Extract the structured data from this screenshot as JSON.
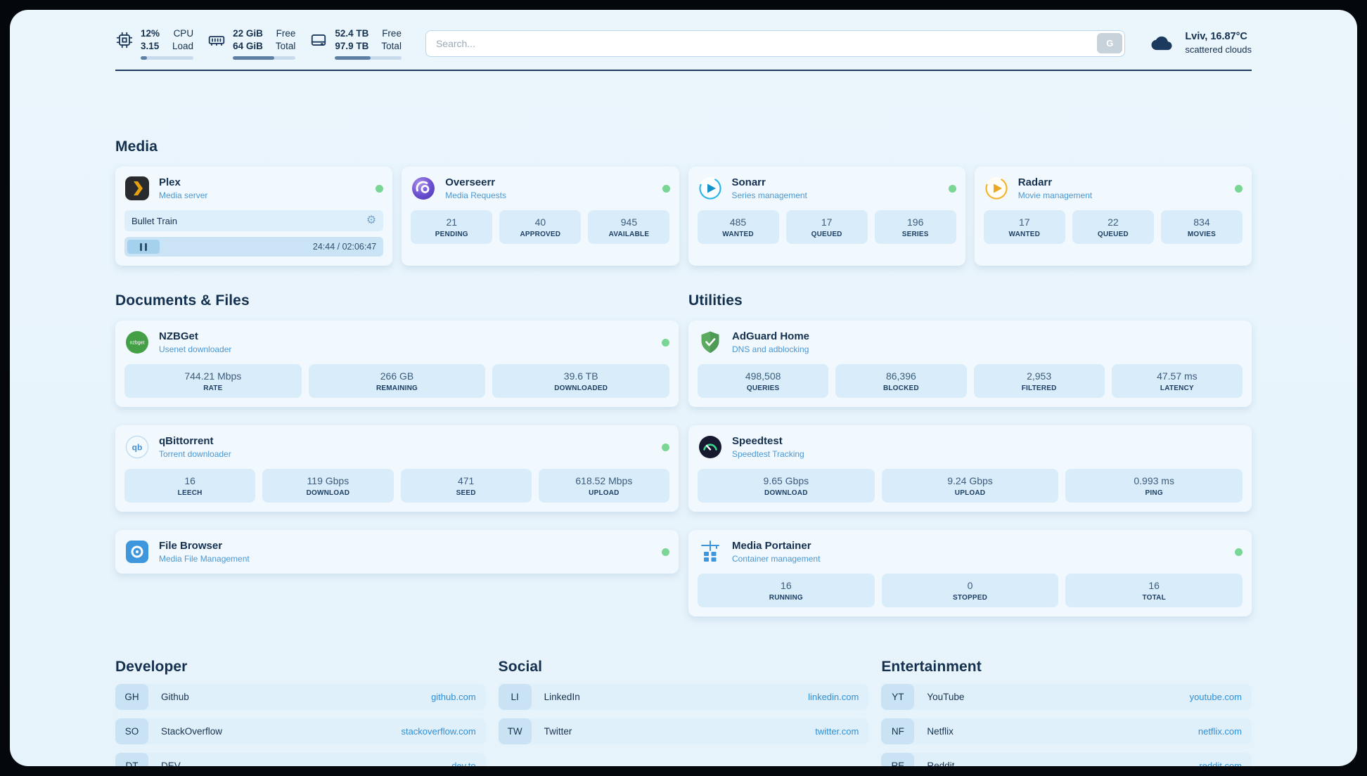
{
  "topbar": {
    "cpu": {
      "v1": "12%",
      "v2": "3.15",
      "l1": "CPU",
      "l2": "Load",
      "progress": 12
    },
    "ram": {
      "v1": "22 GiB",
      "v2": "64 GiB",
      "l1": "Free",
      "l2": "Total",
      "progress": 66
    },
    "disk": {
      "v1": "52.4 TB",
      "v2": "97.9 TB",
      "l1": "Free",
      "l2": "Total",
      "progress": 54
    },
    "search": {
      "placeholder": "Search...",
      "button_label": "G"
    },
    "weather": {
      "location": "Lviv, 16.87°C",
      "condition": "scattered clouds"
    }
  },
  "icons": {
    "gear_glyph": "⚙"
  },
  "colors": {
    "status_online": "#79d694",
    "link_blue": "#2f8fd6",
    "plex_amber": "#e5a00d",
    "panel_bg": "#e9f4fc"
  },
  "sections": {
    "media": {
      "heading": "Media"
    },
    "documents": {
      "heading": "Documents & Files"
    },
    "utilities": {
      "heading": "Utilities"
    }
  },
  "media_cards": [
    {
      "title": "Plex",
      "subtitle": "Media server",
      "now_playing": {
        "title": "Bullet Train",
        "time": "24:44 / 02:06:47"
      }
    },
    {
      "title": "Overseerr",
      "subtitle": "Media Requests",
      "stats": [
        {
          "value": "21",
          "label": "PENDING"
        },
        {
          "value": "40",
          "label": "APPROVED"
        },
        {
          "value": "945",
          "label": "AVAILABLE"
        }
      ]
    },
    {
      "title": "Sonarr",
      "subtitle": "Series management",
      "stats": [
        {
          "value": "485",
          "label": "WANTED"
        },
        {
          "value": "17",
          "label": "QUEUED"
        },
        {
          "value": "196",
          "label": "SERIES"
        }
      ]
    },
    {
      "title": "Radarr",
      "subtitle": "Movie management",
      "stats": [
        {
          "value": "17",
          "label": "WANTED"
        },
        {
          "value": "22",
          "label": "QUEUED"
        },
        {
          "value": "834",
          "label": "MOVIES"
        }
      ]
    }
  ],
  "documents_cards": [
    {
      "title": "NZBGet",
      "subtitle": "Usenet downloader",
      "stats": [
        {
          "value": "744.21 Mbps",
          "label": "RATE"
        },
        {
          "value": "266 GB",
          "label": "REMAINING"
        },
        {
          "value": "39.6 TB",
          "label": "DOWNLOADED"
        }
      ]
    },
    {
      "title": "qBittorrent",
      "subtitle": "Torrent downloader",
      "stats": [
        {
          "value": "16",
          "label": "LEECH"
        },
        {
          "value": "119 Gbps",
          "label": "DOWNLOAD"
        },
        {
          "value": "471",
          "label": "SEED"
        },
        {
          "value": "618.52 Mbps",
          "label": "UPLOAD"
        }
      ]
    },
    {
      "title": "File Browser",
      "subtitle": "Media File Management",
      "stats": []
    }
  ],
  "utilities_cards": [
    {
      "title": "AdGuard Home",
      "subtitle": "DNS and adblocking",
      "stats": [
        {
          "value": "498,508",
          "label": "QUERIES"
        },
        {
          "value": "86,396",
          "label": "BLOCKED"
        },
        {
          "value": "2,953",
          "label": "FILTERED"
        },
        {
          "value": "47.57 ms",
          "label": "LATENCY"
        }
      ]
    },
    {
      "title": "Speedtest",
      "subtitle": "Speedtest Tracking",
      "stats": [
        {
          "value": "9.65 Gbps",
          "label": "DOWNLOAD"
        },
        {
          "value": "9.24 Gbps",
          "label": "UPLOAD"
        },
        {
          "value": "0.993 ms",
          "label": "PING"
        }
      ]
    },
    {
      "title": "Media Portainer",
      "subtitle": "Container management",
      "stats": [
        {
          "value": "16",
          "label": "RUNNING"
        },
        {
          "value": "0",
          "label": "STOPPED"
        },
        {
          "value": "16",
          "label": "TOTAL"
        }
      ]
    }
  ],
  "bookmarks": [
    {
      "heading": "Developer",
      "items": [
        {
          "abbr": "GH",
          "name": "Github",
          "link": "github.com"
        },
        {
          "abbr": "SO",
          "name": "StackOverflow",
          "link": "stackoverflow.com"
        },
        {
          "abbr": "DT",
          "name": "DEV",
          "link": "dev.to"
        }
      ]
    },
    {
      "heading": "Social",
      "items": [
        {
          "abbr": "LI",
          "name": "LinkedIn",
          "link": "linkedin.com"
        },
        {
          "abbr": "TW",
          "name": "Twitter",
          "link": "twitter.com"
        }
      ]
    },
    {
      "heading": "Entertainment",
      "items": [
        {
          "abbr": "YT",
          "name": "YouTube",
          "link": "youtube.com"
        },
        {
          "abbr": "NF",
          "name": "Netflix",
          "link": "netflix.com"
        },
        {
          "abbr": "RE",
          "name": "Reddit",
          "link": "reddit.com"
        }
      ]
    }
  ]
}
